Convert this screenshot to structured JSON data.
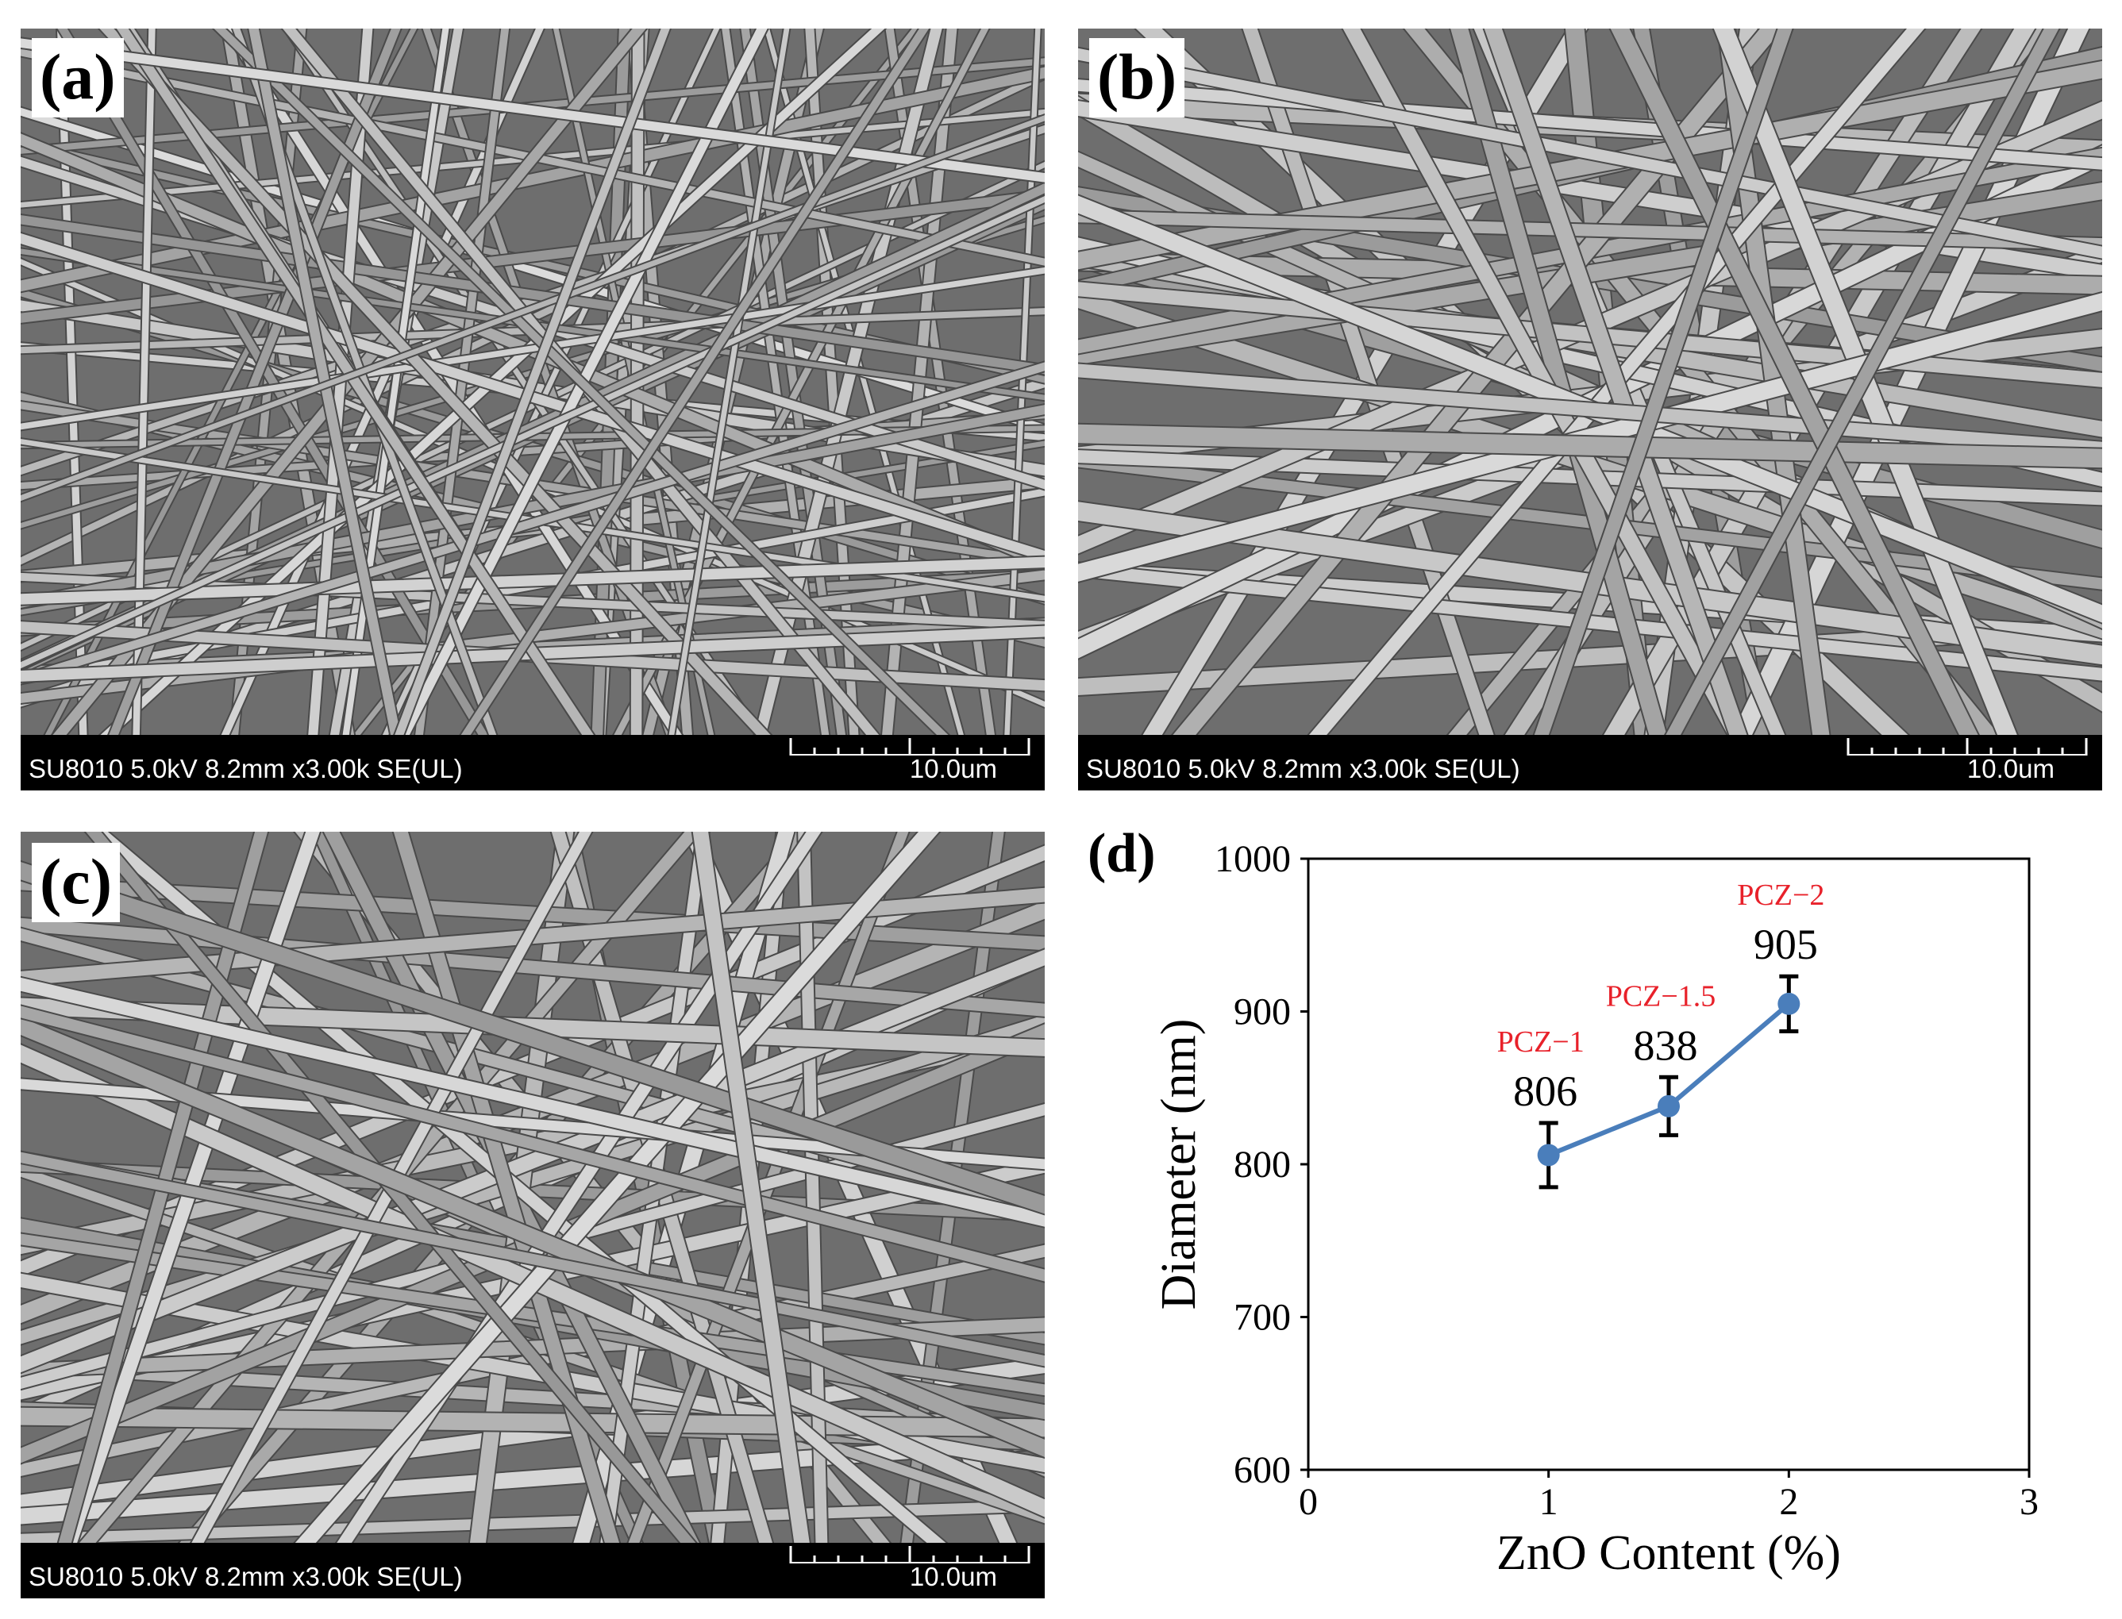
{
  "panels": [
    {
      "label": "(a)",
      "info": "SU8010 5.0kV 8.2mm x3.00k SE(UL)",
      "scale": "10.0um"
    },
    {
      "label": "(b)",
      "info": "SU8010 5.0kV 8.2mm x3.00k SE(UL)",
      "scale": "10.0um"
    },
    {
      "label": "(c)",
      "info": "SU8010 5.0kV 8.2mm x3.00k SE(UL)",
      "scale": "10.0um"
    },
    {
      "label": "(d)"
    }
  ],
  "chart_data": {
    "type": "line",
    "xlabel": "ZnO Content (%)",
    "ylabel": "Diameter (nm)",
    "xlim": [
      0,
      3
    ],
    "ylim": [
      600,
      1000
    ],
    "xticks": [
      "0",
      "1",
      "2",
      "3"
    ],
    "yticks": [
      "600",
      "700",
      "800",
      "900",
      "1000"
    ],
    "grid": false,
    "series": [
      {
        "color": "#4a7ebb",
        "points": [
          {
            "x": 1,
            "y": 806,
            "error": 21,
            "value_label": "806",
            "name": "PCZ−1"
          },
          {
            "x": 1.5,
            "y": 838,
            "error": 19,
            "value_label": "838",
            "name": "PCZ−1.5"
          },
          {
            "x": 2,
            "y": 905,
            "error": 18,
            "value_label": "905",
            "name": "PCZ−2"
          }
        ]
      }
    ],
    "annotation_color": "#e8212a"
  }
}
